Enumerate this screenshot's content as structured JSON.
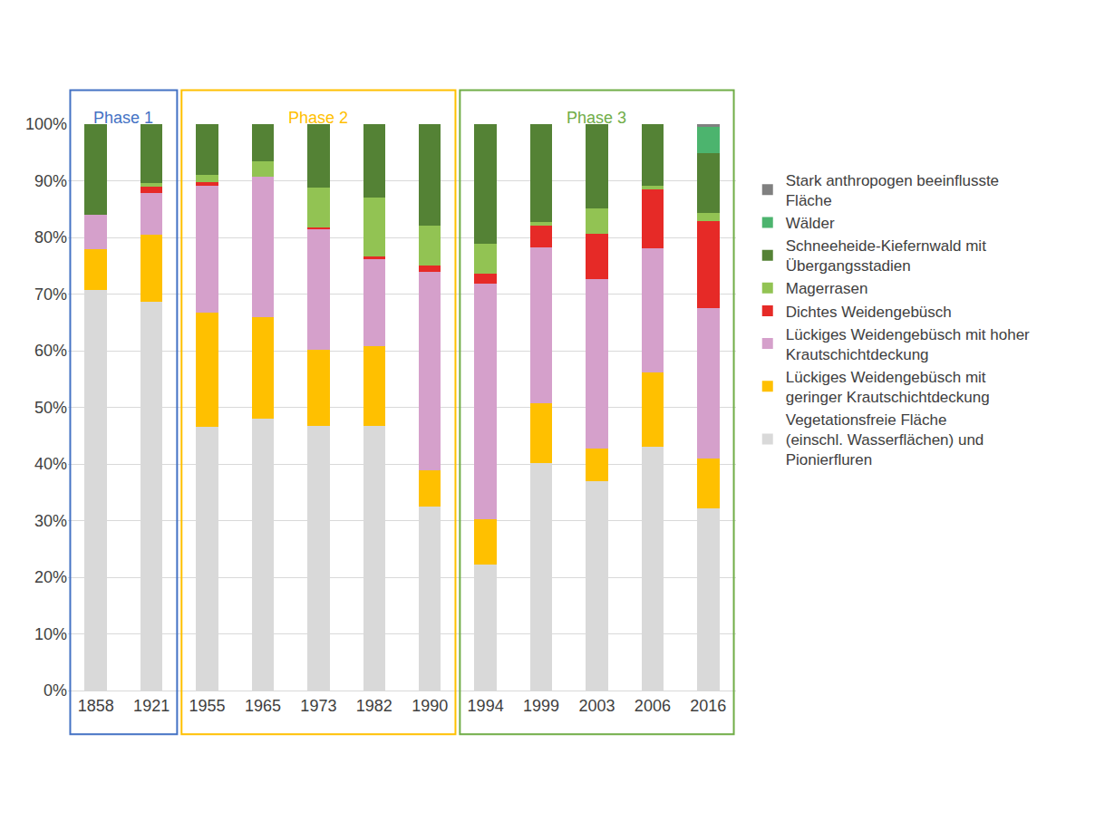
{
  "chart_data": {
    "type": "bar",
    "stacked": true,
    "grid": true,
    "legend": "right",
    "categories": [
      "1858",
      "1921",
      "1955",
      "1965",
      "1973",
      "1982",
      "1990",
      "1994",
      "1999",
      "2003",
      "2006",
      "2016"
    ],
    "ylim": [
      0,
      100
    ],
    "yticks": [
      {
        "value": 0,
        "label": "0%"
      },
      {
        "value": 10,
        "label": "10%"
      },
      {
        "value": 20,
        "label": "20%"
      },
      {
        "value": 30,
        "label": "30%"
      },
      {
        "value": 40,
        "label": "40%"
      },
      {
        "value": 50,
        "label": "50%"
      },
      {
        "value": 60,
        "label": "60%"
      },
      {
        "value": 70,
        "label": "70%"
      },
      {
        "value": 80,
        "label": "80%"
      },
      {
        "value": 90,
        "label": "90%"
      },
      {
        "value": 100,
        "label": "100%"
      }
    ],
    "series": [
      {
        "name": "Vegetationsfreie Fläche (einschl. Wasserflächen) und Pionierfluren",
        "color": "#d9d9d9",
        "values": [
          70.8,
          68.7,
          46.5,
          48.0,
          46.7,
          46.8,
          32.5,
          22.2,
          40.2,
          37.0,
          43.0,
          32.2
        ]
      },
      {
        "name": "Lückiges Weidengebüsch mit geringer Krautschichtdeckung",
        "color": "#ffc000",
        "values": [
          7.2,
          11.8,
          20.3,
          18.0,
          13.5,
          14.0,
          6.4,
          8.0,
          10.5,
          5.8,
          13.2,
          8.7
        ]
      },
      {
        "name": "Lückiges Weidengebüsch mit hoher Krautschichtdeckung",
        "color": "#d5a0cb",
        "values": [
          6.0,
          7.3,
          22.4,
          24.7,
          21.3,
          15.4,
          35.0,
          41.6,
          27.5,
          29.8,
          21.9,
          26.6
        ]
      },
      {
        "name": "Dichtes Weidengebüsch",
        "color": "#e62a27",
        "values": [
          0,
          1.2,
          0.6,
          0,
          0.3,
          0.5,
          1.2,
          1.8,
          3.9,
          8.0,
          10.4,
          15.4
        ]
      },
      {
        "name": "Magerrasen",
        "color": "#92c353",
        "values": [
          0,
          0.6,
          1.2,
          2.8,
          7.0,
          10.3,
          7.0,
          5.3,
          0.6,
          4.6,
          0.6,
          1.4
        ]
      },
      {
        "name": "Schneeheide-Kiefernwald mit Übergangsstadien",
        "color": "#548235",
        "values": [
          16.0,
          10.4,
          9.0,
          6.5,
          11.2,
          13.0,
          17.9,
          21.1,
          17.3,
          14.8,
          10.9,
          10.6
        ]
      },
      {
        "name": "Wälder",
        "color": "#4cb46e",
        "values": [
          0,
          0,
          0,
          0,
          0,
          0,
          0,
          0,
          0,
          0,
          0,
          4.7
        ]
      },
      {
        "name": "Stark anthropogen beeinflusste Fläche",
        "color": "#808080",
        "values": [
          0,
          0,
          0,
          0,
          0,
          0,
          0,
          0,
          0,
          0,
          0,
          0.4
        ]
      }
    ],
    "annotations": [
      {
        "text": "Phase 1",
        "color": "#4472c4",
        "categories": [
          "1858",
          "1921"
        ]
      },
      {
        "text": "Phase 2",
        "color": "#ffc000",
        "categories": [
          "1955",
          "1965",
          "1973",
          "1982",
          "1990"
        ]
      },
      {
        "text": "Phase 3",
        "color": "#70ad47",
        "categories": [
          "1994",
          "1999",
          "2003",
          "2006",
          "2016"
        ]
      }
    ]
  }
}
